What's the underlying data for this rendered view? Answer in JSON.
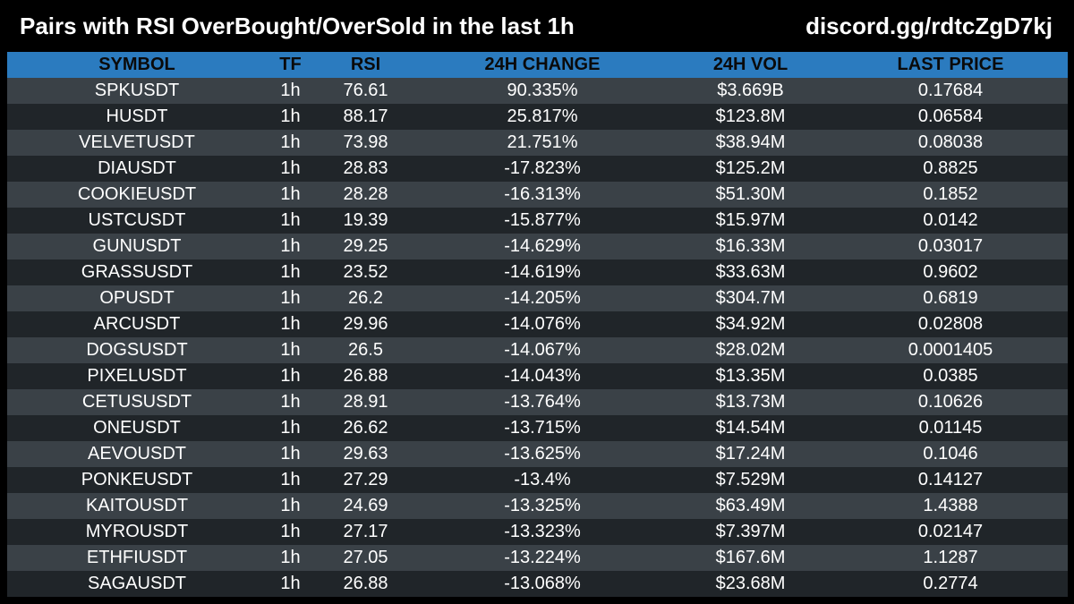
{
  "header": {
    "title": "Pairs with RSI OverBought/OverSold in the last 1h",
    "link": "discord.gg/rdtcZgD7kj"
  },
  "table": {
    "columns": [
      "SYMBOL",
      "TF",
      "RSI",
      "24H CHANGE",
      "24H VOL",
      "LAST PRICE"
    ],
    "rows": [
      [
        "SPKUSDT",
        "1h",
        "76.61",
        "90.335%",
        "$3.669B",
        "0.17684"
      ],
      [
        "HUSDT",
        "1h",
        "88.17",
        "25.817%",
        "$123.8M",
        "0.06584"
      ],
      [
        "VELVETUSDT",
        "1h",
        "73.98",
        "21.751%",
        "$38.94M",
        "0.08038"
      ],
      [
        "DIAUSDT",
        "1h",
        "28.83",
        "-17.823%",
        "$125.2M",
        "0.8825"
      ],
      [
        "COOKIEUSDT",
        "1h",
        "28.28",
        "-16.313%",
        "$51.30M",
        "0.1852"
      ],
      [
        "USTCUSDT",
        "1h",
        "19.39",
        "-15.877%",
        "$15.97M",
        "0.0142"
      ],
      [
        "GUNUSDT",
        "1h",
        "29.25",
        "-14.629%",
        "$16.33M",
        "0.03017"
      ],
      [
        "GRASSUSDT",
        "1h",
        "23.52",
        "-14.619%",
        "$33.63M",
        "0.9602"
      ],
      [
        "OPUSDT",
        "1h",
        "26.2",
        "-14.205%",
        "$304.7M",
        "0.6819"
      ],
      [
        "ARCUSDT",
        "1h",
        "29.96",
        "-14.076%",
        "$34.92M",
        "0.02808"
      ],
      [
        "DOGSUSDT",
        "1h",
        "26.5",
        "-14.067%",
        "$28.02M",
        "0.0001405"
      ],
      [
        "PIXELUSDT",
        "1h",
        "26.88",
        "-14.043%",
        "$13.35M",
        "0.0385"
      ],
      [
        "CETUSUSDT",
        "1h",
        "28.91",
        "-13.764%",
        "$13.73M",
        "0.10626"
      ],
      [
        "ONEUSDT",
        "1h",
        "26.62",
        "-13.715%",
        "$14.54M",
        "0.01145"
      ],
      [
        "AEVOUSDT",
        "1h",
        "29.63",
        "-13.625%",
        "$17.24M",
        "0.1046"
      ],
      [
        "PONKEUSDT",
        "1h",
        "27.29",
        "-13.4%",
        "$7.529M",
        "0.14127"
      ],
      [
        "KAITOUSDT",
        "1h",
        "24.69",
        "-13.325%",
        "$63.49M",
        "1.4388"
      ],
      [
        "MYROUSDT",
        "1h",
        "27.17",
        "-13.323%",
        "$7.397M",
        "0.02147"
      ],
      [
        "ETHFIUSDT",
        "1h",
        "27.05",
        "-13.224%",
        "$167.6M",
        "1.1287"
      ],
      [
        "SAGAUSDT",
        "1h",
        "26.88",
        "-13.068%",
        "$23.68M",
        "0.2774"
      ]
    ]
  },
  "colors": {
    "background": "#000000",
    "header_row": "#2b7bbf",
    "row_dark": "#202529",
    "row_light": "#3a4147",
    "text": "#ffffff"
  }
}
